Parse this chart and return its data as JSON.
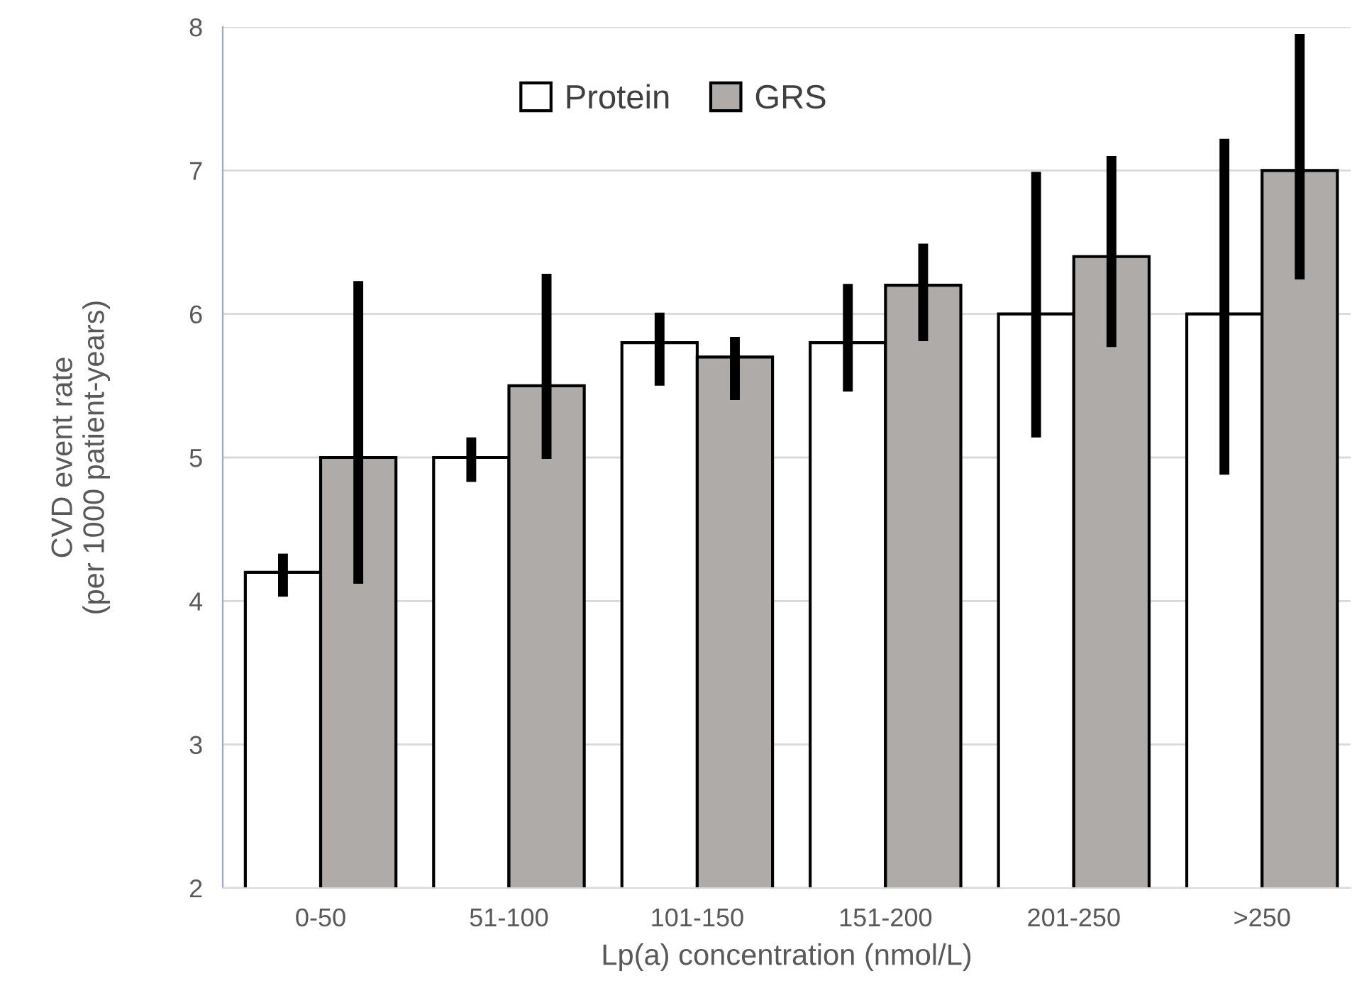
{
  "chart_data": {
    "type": "bar",
    "xlabel": "Lp(a) concentration (nmol/L)",
    "ylabel": "CVD event rate\n(per 1000 patient-years)",
    "categories": [
      "0-50",
      "51-100",
      "101-150",
      "151-200",
      "201-250",
      ">250"
    ],
    "series": [
      {
        "name": "Protein",
        "color": "#ffffff",
        "values": [
          4.2,
          5.0,
          5.8,
          5.8,
          6.0,
          6.0
        ],
        "errors": [
          [
            4.03,
            4.33
          ],
          [
            4.83,
            5.14
          ],
          [
            5.5,
            6.01
          ],
          [
            5.46,
            6.21
          ],
          [
            5.14,
            6.99
          ],
          [
            4.88,
            7.22
          ]
        ]
      },
      {
        "name": "GRS",
        "color": "#afaba8",
        "values": [
          5.0,
          5.5,
          5.7,
          6.2,
          6.4,
          7.0
        ],
        "errors": [
          [
            4.12,
            6.23
          ],
          [
            4.99,
            6.28
          ],
          [
            5.4,
            5.84
          ],
          [
            5.81,
            6.49
          ],
          [
            5.77,
            7.1
          ],
          [
            6.24,
            7.95
          ]
        ]
      }
    ],
    "ylim": [
      2,
      8
    ],
    "yticks": [
      2,
      3,
      4,
      5,
      6,
      7,
      8
    ],
    "grid": "y",
    "legend": "top"
  }
}
